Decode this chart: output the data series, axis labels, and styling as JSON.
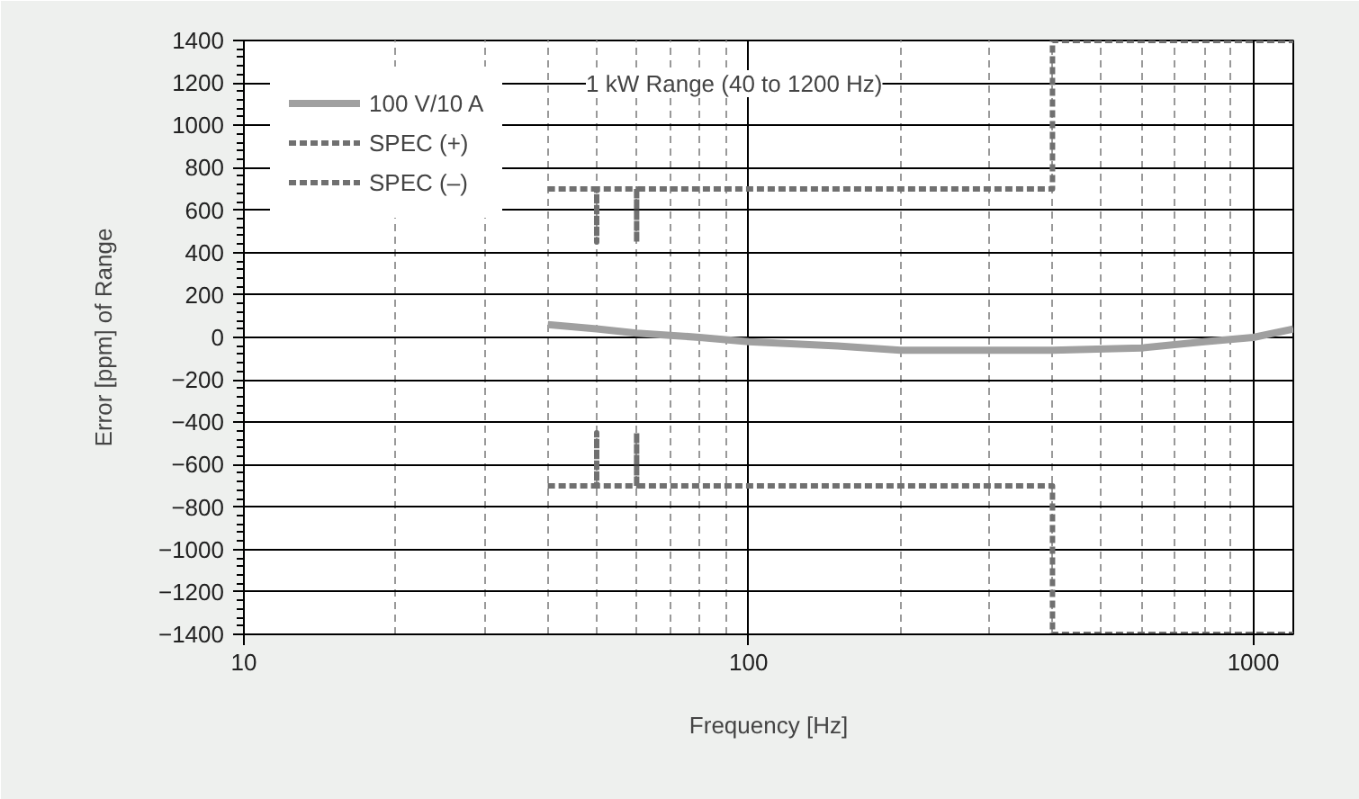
{
  "chart_data": {
    "type": "line",
    "xlabel": "Frequency [Hz]",
    "ylabel": "Error [ppm] of Range",
    "log": "x",
    "xlim": [
      10,
      1200
    ],
    "ylim": [
      -1400,
      1400
    ],
    "xticks": [
      10,
      100,
      1000
    ],
    "yticks": [
      -1400,
      -1200,
      -1000,
      -800,
      -600,
      -400,
      -200,
      0,
      200,
      400,
      600,
      800,
      1000,
      1200,
      1400
    ],
    "grid": true,
    "legend": "top left",
    "annotations": [
      "1 kW Range (40 to 1200 Hz)"
    ],
    "series": [
      {
        "name": "100 V/10 A",
        "color": "#a0a0a0",
        "line_style": "solid",
        "x": [
          40,
          50,
          60,
          70,
          80,
          100,
          150,
          200,
          300,
          400,
          600,
          800,
          1000,
          1200
        ],
        "values": [
          60,
          40,
          20,
          10,
          0,
          -20,
          -40,
          -60,
          -60,
          -60,
          -50,
          -20,
          0,
          40
        ]
      },
      {
        "name": "SPEC (+)",
        "color": "#707070",
        "line_style": "dashed",
        "x": [
          40,
          50,
          50,
          50,
          60,
          60,
          60,
          400,
          400,
          1200
        ],
        "values": [
          700,
          700,
          450,
          700,
          700,
          450,
          700,
          700,
          1400,
          1400
        ]
      },
      {
        "name": "SPEC (–)",
        "color": "#707070",
        "line_style": "dashed",
        "x": [
          40,
          50,
          50,
          50,
          60,
          60,
          60,
          400,
          400,
          1200
        ],
        "values": [
          -700,
          -700,
          -450,
          -700,
          -700,
          -450,
          -700,
          -700,
          -1400,
          -1400
        ]
      }
    ]
  }
}
